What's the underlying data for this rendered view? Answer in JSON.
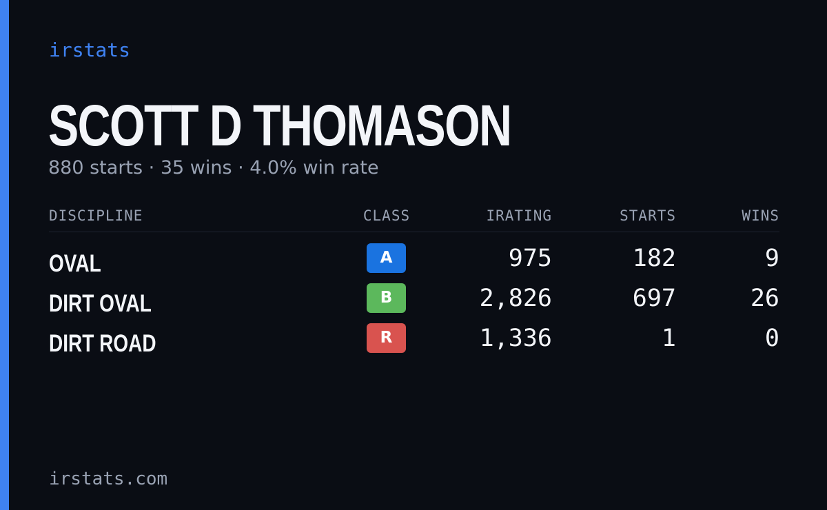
{
  "brand": "irstats",
  "driver": {
    "name": "SCOTT D THOMASON",
    "summary": "880 starts · 35 wins · 4.0% win rate"
  },
  "table": {
    "headers": {
      "discipline": "DISCIPLINE",
      "class": "CLASS",
      "irating": "IRATING",
      "starts": "STARTS",
      "wins": "WINS"
    },
    "rows": [
      {
        "discipline": "OVAL",
        "class": "A",
        "class_color": "#1a73e0",
        "irating": "975",
        "starts": "182",
        "wins": "9"
      },
      {
        "discipline": "DIRT OVAL",
        "class": "B",
        "class_color": "#5cb85c",
        "irating": "2,826",
        "starts": "697",
        "wins": "26"
      },
      {
        "discipline": "DIRT ROAD",
        "class": "R",
        "class_color": "#d9534f",
        "irating": "1,336",
        "starts": "1",
        "wins": "0"
      }
    ]
  },
  "footer": "irstats.com",
  "colors": {
    "accent": "#3f82f2",
    "background": "#0a0d14",
    "muted": "#99a2b3"
  }
}
